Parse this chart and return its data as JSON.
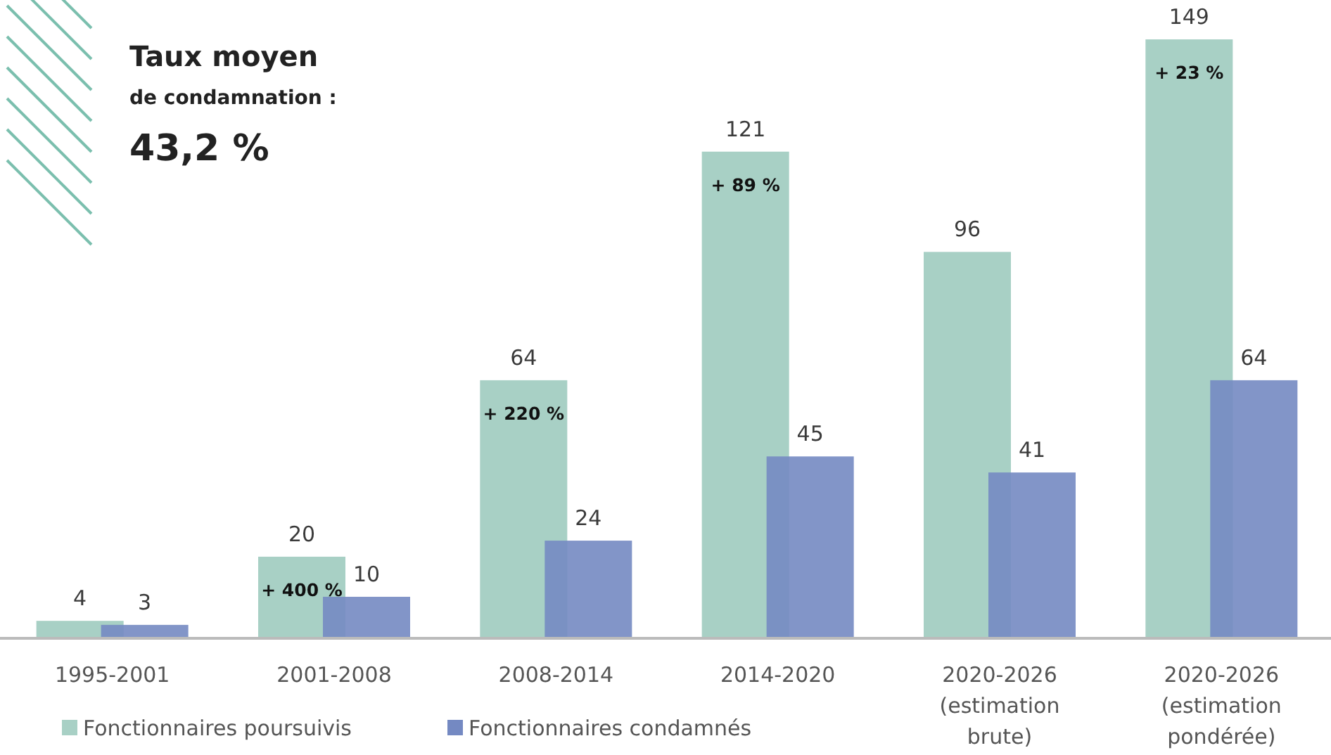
{
  "chart_data": {
    "type": "bar",
    "title": "Taux moyen",
    "subtitle": "de condamnation :",
    "categories": [
      "1995-2001",
      "2001-2008",
      "2008-2014",
      "2014-2020",
      "2020-2026 (estimation brute)",
      "2020-2026 (estimation pondérée)"
    ],
    "series": [
      {
        "name": "Fonctionnaires poursuivis",
        "color": "#a8d0c5",
        "values": [
          4,
          20,
          64,
          121,
          96,
          149
        ]
      },
      {
        "name": "Fonctionnaires condamnés",
        "color": "#7489c2",
        "values": [
          3,
          10,
          24,
          45,
          41,
          64
        ]
      }
    ],
    "data_labels": true,
    "legend": "bottom left",
    "grid": false,
    "annotations": [
      "43,2 %",
      "+ 400 %",
      "+ 220 %",
      "+ 89 %",
      "+ 23 %"
    ]
  }
}
